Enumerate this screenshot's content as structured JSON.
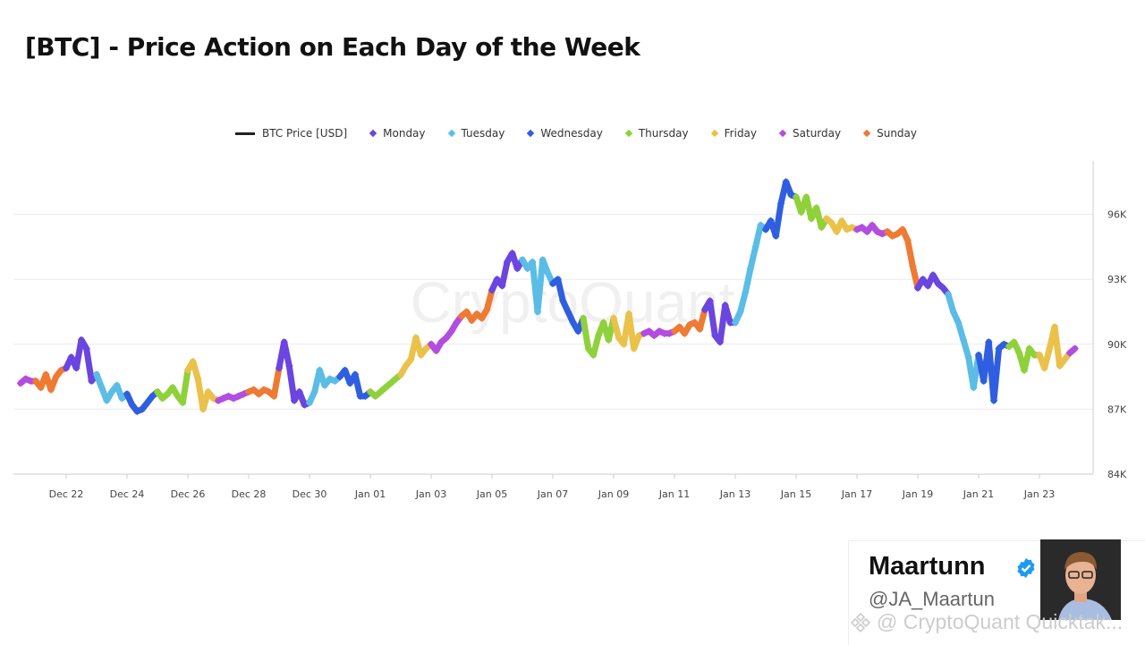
{
  "title": "[BTC] - Price Action on Each Day of the Week",
  "legend": [
    {
      "label": "BTC Price [USD]",
      "type": "line",
      "color": "#222222"
    },
    {
      "label": "Monday",
      "color": "#6a45e0"
    },
    {
      "label": "Tuesday",
      "color": "#5bbde6"
    },
    {
      "label": "Wednesday",
      "color": "#2f5fe0"
    },
    {
      "label": "Thursday",
      "color": "#8fd13a"
    },
    {
      "label": "Friday",
      "color": "#eac14a"
    },
    {
      "label": "Saturday",
      "color": "#b24de0"
    },
    {
      "label": "Sunday",
      "color": "#ee7a33"
    }
  ],
  "watermark": "CryptoQuant",
  "author": {
    "name": "Maartunn",
    "handle": "@JA_Maartun",
    "verified": true
  },
  "footer_watermark": "@ CryptoQuant Quicktak...",
  "chart_data": {
    "type": "scatter",
    "title": "[BTC] - Price Action on Each Day of the Week",
    "y_axis_position": "right",
    "ylim": [
      84000,
      98500
    ],
    "y_ticks": [
      {
        "v": 84,
        "label": "84K"
      },
      {
        "v": 87,
        "label": "87K"
      },
      {
        "v": 90,
        "label": "90K"
      },
      {
        "v": 93,
        "label": "93K"
      },
      {
        "v": 96,
        "label": "96K"
      }
    ],
    "x_ticks": [
      {
        "day": 1,
        "label": "Dec 22"
      },
      {
        "day": 3,
        "label": "Dec 24"
      },
      {
        "day": 5,
        "label": "Dec 26"
      },
      {
        "day": 7,
        "label": "Dec 28"
      },
      {
        "day": 9,
        "label": "Dec 30"
      },
      {
        "day": 11,
        "label": "Jan 01"
      },
      {
        "day": 13,
        "label": "Jan 03"
      },
      {
        "day": 15,
        "label": "Jan 05"
      },
      {
        "day": 17,
        "label": "Jan 07"
      },
      {
        "day": 19,
        "label": "Jan 09"
      },
      {
        "day": 21,
        "label": "Jan 11"
      },
      {
        "day": 23,
        "label": "Jan 13"
      },
      {
        "day": 25,
        "label": "Jan 15"
      },
      {
        "day": 27,
        "label": "Jan 17"
      },
      {
        "day": 29,
        "label": "Jan 19"
      },
      {
        "day": 31,
        "label": "Jan 21"
      },
      {
        "day": 33,
        "label": "Jan 23"
      }
    ],
    "grid": true,
    "legend_position": "top",
    "price_unit": "K USD, sampled every 4h",
    "days": [
      {
        "date": "Dec 21",
        "weekday": "Saturday",
        "prices": [
          88.2,
          88.4,
          88.3
        ]
      },
      {
        "date": "Dec 22",
        "weekday": "Sunday",
        "prices": [
          88.3,
          88.0,
          88.6,
          87.9,
          88.5,
          88.8
        ]
      },
      {
        "date": "Dec 23",
        "weekday": "Monday",
        "prices": [
          88.9,
          89.4,
          88.9,
          90.2,
          89.8,
          88.3
        ]
      },
      {
        "date": "Dec 24",
        "weekday": "Tuesday",
        "prices": [
          88.6,
          88.0,
          87.4,
          87.8,
          88.1,
          87.5
        ]
      },
      {
        "date": "Dec 25",
        "weekday": "Wednesday",
        "prices": [
          87.7,
          87.2,
          86.9,
          87.0,
          87.3,
          87.6
        ]
      },
      {
        "date": "Dec 26",
        "weekday": "Thursday",
        "prices": [
          87.8,
          87.5,
          87.7,
          88.0,
          87.6,
          87.3
        ]
      },
      {
        "date": "Dec 27",
        "weekday": "Friday",
        "prices": [
          88.8,
          89.2,
          88.4,
          87.0,
          87.8,
          87.5
        ]
      },
      {
        "date": "Dec 28",
        "weekday": "Saturday",
        "prices": [
          87.4,
          87.5,
          87.6,
          87.5,
          87.6,
          87.7
        ]
      },
      {
        "date": "Dec 29",
        "weekday": "Sunday",
        "prices": [
          87.8,
          87.9,
          87.7,
          87.9,
          87.8,
          87.6
        ]
      },
      {
        "date": "Dec 30",
        "weekday": "Monday",
        "prices": [
          88.9,
          90.1,
          89.0,
          87.4,
          87.8,
          87.2
        ]
      },
      {
        "date": "Dec 31",
        "weekday": "Tuesday",
        "prices": [
          87.3,
          87.8,
          88.8,
          88.1,
          88.4,
          88.3
        ]
      },
      {
        "date": "Jan 01",
        "weekday": "Wednesday",
        "prices": [
          88.5,
          88.8,
          88.2,
          88.6,
          87.6,
          87.6
        ]
      },
      {
        "date": "Jan 02",
        "weekday": "Thursday",
        "prices": [
          87.8,
          87.6,
          87.8,
          88.0,
          88.2,
          88.4
        ]
      },
      {
        "date": "Jan 03",
        "weekday": "Friday",
        "prices": [
          88.6,
          89.0,
          89.3,
          90.3,
          89.5,
          89.8
        ]
      },
      {
        "date": "Jan 04",
        "weekday": "Saturday",
        "prices": [
          90.0,
          89.7,
          90.1,
          90.3,
          90.6,
          91.0
        ]
      },
      {
        "date": "Jan 05",
        "weekday": "Sunday",
        "prices": [
          91.3,
          91.5,
          91.1,
          91.4,
          91.2,
          91.6
        ]
      },
      {
        "date": "Jan 06",
        "weekday": "Monday",
        "prices": [
          92.5,
          93.0,
          92.7,
          93.8,
          94.2,
          93.5
        ]
      },
      {
        "date": "Jan 07",
        "weekday": "Tuesday",
        "prices": [
          93.9,
          93.5,
          93.8,
          91.5,
          93.9,
          93.3
        ]
      },
      {
        "date": "Jan 08",
        "weekday": "Wednesday",
        "prices": [
          92.8,
          93.0,
          92.0,
          91.5,
          91.0,
          90.6
        ]
      },
      {
        "date": "Jan 09",
        "weekday": "Thursday",
        "prices": [
          91.2,
          89.8,
          89.5,
          90.4,
          91.0,
          90.2
        ]
      },
      {
        "date": "Jan 10",
        "weekday": "Friday",
        "prices": [
          91.2,
          90.3,
          90.0,
          91.4,
          89.8,
          90.4
        ]
      },
      {
        "date": "Jan 11",
        "weekday": "Saturday",
        "prices": [
          90.5,
          90.6,
          90.4,
          90.6,
          90.5,
          90.5
        ]
      },
      {
        "date": "Jan 12",
        "weekday": "Sunday",
        "prices": [
          90.6,
          90.8,
          90.5,
          90.9,
          91.0,
          90.7
        ]
      },
      {
        "date": "Jan 13",
        "weekday": "Monday",
        "prices": [
          91.6,
          92.0,
          90.4,
          90.1,
          91.8,
          91.0
        ]
      },
      {
        "date": "Jan 14",
        "weekday": "Tuesday",
        "prices": [
          91.0,
          91.5,
          92.4,
          93.5,
          94.5,
          95.5
        ]
      },
      {
        "date": "Jan 15",
        "weekday": "Wednesday",
        "prices": [
          95.3,
          95.7,
          95.0,
          96.5,
          97.5,
          96.9
        ]
      },
      {
        "date": "Jan 16",
        "weekday": "Thursday",
        "prices": [
          96.8,
          96.1,
          96.8,
          95.8,
          96.3,
          95.4
        ]
      },
      {
        "date": "Jan 17",
        "weekday": "Friday",
        "prices": [
          95.8,
          95.6,
          95.2,
          95.7,
          95.3,
          95.4
        ]
      },
      {
        "date": "Jan 18",
        "weekday": "Saturday",
        "prices": [
          95.3,
          95.4,
          95.2,
          95.5,
          95.2,
          95.1
        ]
      },
      {
        "date": "Jan 19",
        "weekday": "Sunday",
        "prices": [
          95.2,
          95.0,
          95.1,
          95.3,
          94.8,
          93.6
        ]
      },
      {
        "date": "Jan 20",
        "weekday": "Monday",
        "prices": [
          92.6,
          93.0,
          92.7,
          93.2,
          92.8,
          92.6
        ]
      },
      {
        "date": "Jan 21",
        "weekday": "Tuesday",
        "prices": [
          92.3,
          91.5,
          91.0,
          90.2,
          89.4,
          88.0
        ]
      },
      {
        "date": "Jan 22",
        "weekday": "Wednesday",
        "prices": [
          89.5,
          88.3,
          90.1,
          87.4,
          89.8,
          90.0
        ]
      },
      {
        "date": "Jan 23",
        "weekday": "Thursday",
        "prices": [
          89.9,
          90.1,
          89.6,
          88.8,
          89.8,
          89.5
        ]
      },
      {
        "date": "Jan 24",
        "weekday": "Friday",
        "prices": [
          89.5,
          88.9,
          89.8,
          90.8,
          89.0,
          89.3
        ]
      },
      {
        "date": "Jan 25",
        "weekday": "Saturday",
        "prices": [
          89.6,
          89.8
        ]
      }
    ]
  }
}
